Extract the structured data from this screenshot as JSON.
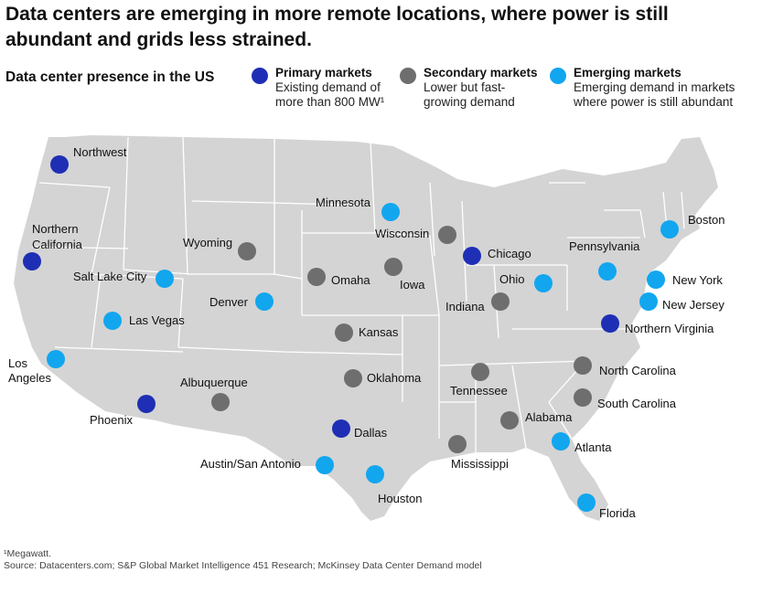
{
  "title": "Data centers are emerging in more remote locations, where power is still abundant and grids less strained.",
  "subtitle": "Data center presence in the US",
  "legend": {
    "primary": {
      "label": "Primary markets",
      "desc1": "Existing demand of",
      "desc2": "more than 800 MW¹",
      "color": "#1f2fb5"
    },
    "secondary": {
      "label": "Secondary markets",
      "desc1": "Lower but fast-",
      "desc2": "growing demand",
      "color": "#6e6e6e"
    },
    "emerging": {
      "label": "Emerging markets",
      "desc1": "Emerging demand in markets",
      "desc2": "where power is still abundant",
      "color": "#12a6ef"
    }
  },
  "map_colors": {
    "land": "#d4d4d4",
    "borders": "#ffffff"
  },
  "markets": [
    {
      "name": "Northwest",
      "type": "primary"
    },
    {
      "name": "Northern California",
      "type": "primary"
    },
    {
      "name": "Phoenix",
      "type": "primary"
    },
    {
      "name": "Dallas",
      "type": "primary"
    },
    {
      "name": "Chicago",
      "type": "primary"
    },
    {
      "name": "Northern Virginia",
      "type": "primary"
    },
    {
      "name": "Wyoming",
      "type": "secondary"
    },
    {
      "name": "Omaha",
      "type": "secondary"
    },
    {
      "name": "Iowa",
      "type": "secondary"
    },
    {
      "name": "Wisconsin",
      "type": "secondary"
    },
    {
      "name": "Kansas",
      "type": "secondary"
    },
    {
      "name": "Oklahoma",
      "type": "secondary"
    },
    {
      "name": "Albuquerque",
      "type": "secondary"
    },
    {
      "name": "Indiana",
      "type": "secondary"
    },
    {
      "name": "Tennessee",
      "type": "secondary"
    },
    {
      "name": "Alabama",
      "type": "secondary"
    },
    {
      "name": "Mississippi",
      "type": "secondary"
    },
    {
      "name": "North Carolina",
      "type": "secondary"
    },
    {
      "name": "South Carolina",
      "type": "secondary"
    },
    {
      "name": "Minnesota",
      "type": "emerging"
    },
    {
      "name": "Salt Lake City",
      "type": "emerging"
    },
    {
      "name": "Denver",
      "type": "emerging"
    },
    {
      "name": "Las Vegas",
      "type": "emerging"
    },
    {
      "name": "Los Angeles",
      "type": "emerging"
    },
    {
      "name": "Austin/San Antonio",
      "type": "emerging"
    },
    {
      "name": "Houston",
      "type": "emerging"
    },
    {
      "name": "Ohio",
      "type": "emerging"
    },
    {
      "name": "Pennsylvania",
      "type": "emerging"
    },
    {
      "name": "Boston",
      "type": "emerging"
    },
    {
      "name": "New York",
      "type": "emerging"
    },
    {
      "name": "New Jersey",
      "type": "emerging"
    },
    {
      "name": "Atlanta",
      "type": "emerging"
    },
    {
      "name": "Florida",
      "type": "emerging"
    }
  ],
  "footnote": {
    "line1": "¹Megawatt.",
    "line2": "Source: Datacenters.com; S&P Global Market Intelligence 451 Research; McKinsey Data Center Demand model"
  }
}
